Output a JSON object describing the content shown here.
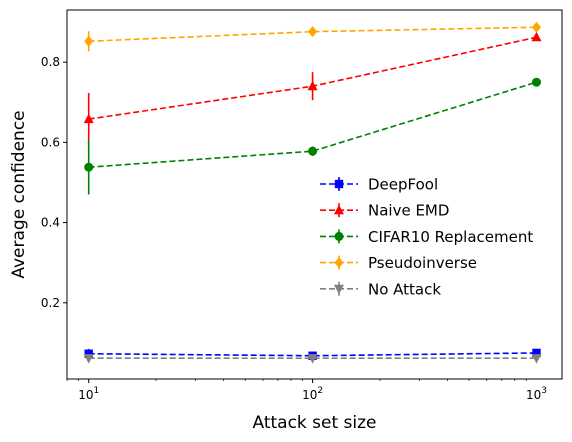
{
  "chart_data": {
    "type": "line",
    "xscale": "log",
    "x": [
      10,
      100,
      1000
    ],
    "xlim": [
      8,
      1300
    ],
    "ylim": [
      0.01,
      0.93
    ],
    "xlabel": "Attack set size",
    "ylabel": "Average confidence",
    "xticks": [
      {
        "base": "10",
        "exp": "1",
        "value": 10
      },
      {
        "base": "10",
        "exp": "2",
        "value": 100
      },
      {
        "base": "10",
        "exp": "3",
        "value": 1000
      }
    ],
    "yticks": [
      {
        "label": "0.2",
        "value": 0.2
      },
      {
        "label": "0.4",
        "value": 0.4
      },
      {
        "label": "0.6",
        "value": 0.6
      },
      {
        "label": "0.8",
        "value": 0.8
      }
    ],
    "legend_position": "center-right",
    "grid": false,
    "series": [
      {
        "name": "DeepFool",
        "color": "#0000ff",
        "marker": "square",
        "values": [
          0.073,
          0.068,
          0.075
        ],
        "errors": [
          0.012,
          0.009,
          0.006
        ]
      },
      {
        "name": "Naive EMD",
        "color": "#ff0000",
        "marker": "triangle-up",
        "values": [
          0.658,
          0.74,
          0.862
        ],
        "errors": [
          0.065,
          0.035,
          0.006
        ]
      },
      {
        "name": "CIFAR10 Replacement",
        "color": "#008000",
        "marker": "circle",
        "values": [
          0.538,
          0.578,
          0.75
        ],
        "errors": [
          0.068,
          0.012,
          0.01
        ]
      },
      {
        "name": "Pseudoinverse",
        "color": "#ffa500",
        "marker": "diamond",
        "values": [
          0.852,
          0.876,
          0.887
        ],
        "errors": [
          0.025,
          0.008,
          0.01
        ]
      },
      {
        "name": "No Attack",
        "color": "#808080",
        "marker": "triangle-down",
        "values": [
          0.062,
          0.062,
          0.062
        ],
        "errors": [
          0.004,
          0.004,
          0.004
        ]
      }
    ]
  }
}
